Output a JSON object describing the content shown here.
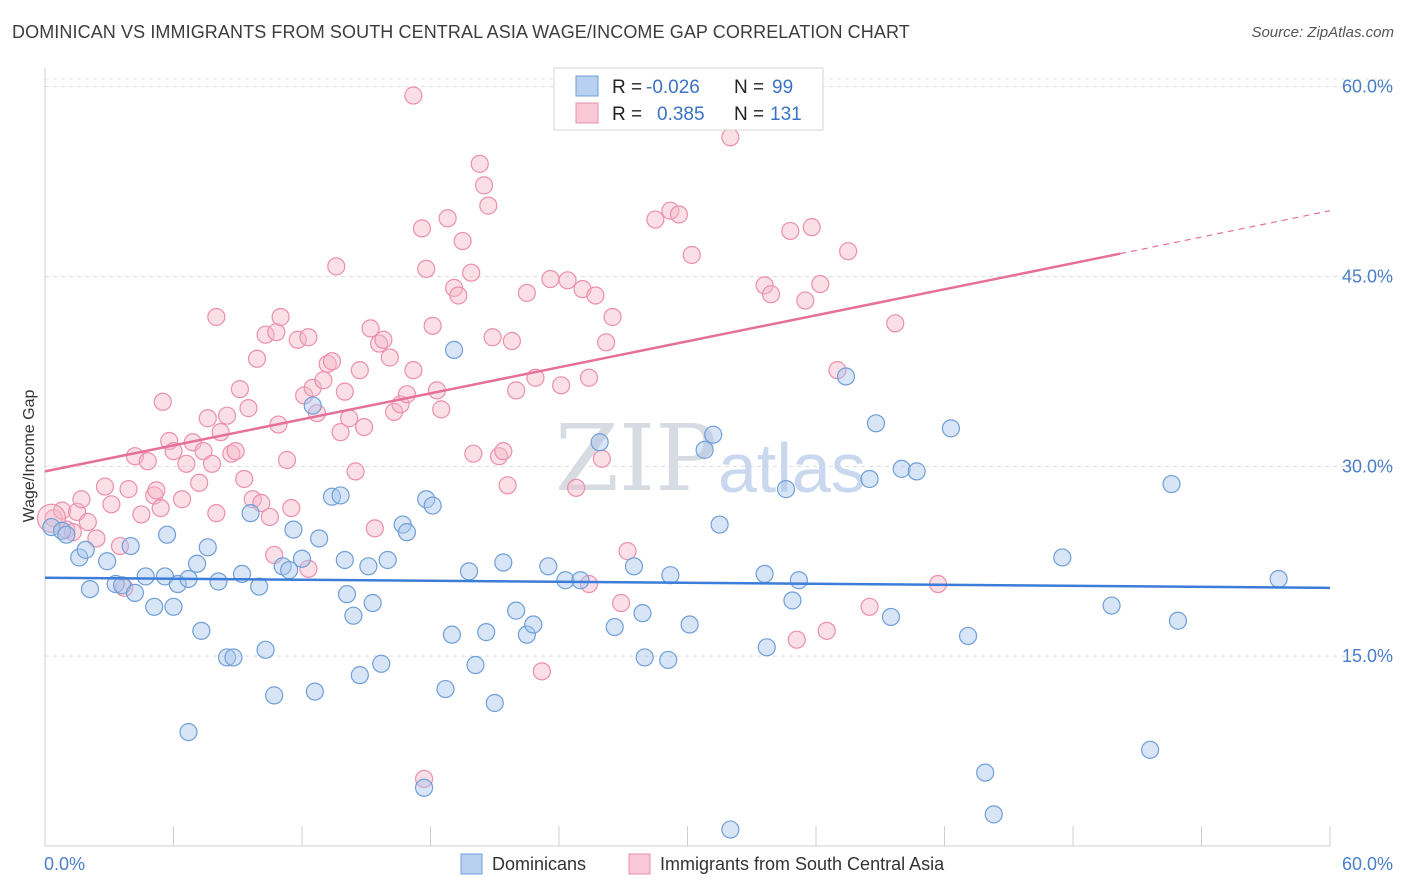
{
  "header": {
    "title": "DOMINICAN VS IMMIGRANTS FROM SOUTH CENTRAL ASIA WAGE/INCOME GAP CORRELATION CHART",
    "source": "Source: ZipAtlas.com"
  },
  "watermark": {
    "zip": "ZIP",
    "atlas": "atlas"
  },
  "legend_box": {
    "rows": [
      {
        "r_label": "R =",
        "r_value": "-0.026",
        "n_label": "N =",
        "n_value": "99"
      },
      {
        "r_label": "R =",
        "r_value": "0.385",
        "n_label": "N =",
        "n_value": "131"
      }
    ]
  },
  "colors": {
    "blue_fill": "#a9c6ec",
    "blue_stroke": "#6f9fd8",
    "blue_line": "#3b7dd8",
    "pink_fill": "#f5b7c9",
    "pink_stroke": "#ec8fac",
    "pink_line": "#e5709a"
  },
  "chart_data": {
    "type": "scatter",
    "title": "DOMINICAN VS IMMIGRANTS FROM SOUTH CENTRAL ASIA WAGE/INCOME GAP CORRELATION CHART",
    "xlabel": "",
    "ylabel": "Wage/Income Gap",
    "xlim": [
      0,
      60
    ],
    "ylim": [
      0,
      61
    ],
    "x_tick_labels": [
      "0.0%",
      "60.0%"
    ],
    "y_ticks": [
      15,
      30,
      45,
      60
    ],
    "y_tick_labels": [
      "15.0%",
      "30.0%",
      "45.0%",
      "60.0%"
    ],
    "grid": true,
    "series": [
      {
        "name": "Dominicans",
        "R": -0.026,
        "N": 99,
        "trend": {
          "x": [
            0,
            60
          ],
          "y": [
            21.2,
            20.4
          ]
        },
        "points": [
          [
            0.3,
            25.2
          ],
          [
            0.8,
            24.9
          ],
          [
            1.0,
            24.6
          ],
          [
            1.6,
            22.8
          ],
          [
            1.9,
            23.4
          ],
          [
            2.1,
            20.3
          ],
          [
            2.9,
            22.5
          ],
          [
            3.3,
            20.7
          ],
          [
            3.6,
            20.6
          ],
          [
            4.0,
            23.7
          ],
          [
            4.2,
            20.0
          ],
          [
            4.7,
            21.3
          ],
          [
            5.1,
            18.9
          ],
          [
            5.6,
            21.3
          ],
          [
            5.7,
            24.6
          ],
          [
            6.0,
            18.9
          ],
          [
            6.2,
            20.7
          ],
          [
            6.7,
            21.1
          ],
          [
            7.1,
            22.3
          ],
          [
            7.3,
            17.0
          ],
          [
            7.6,
            23.6
          ],
          [
            8.1,
            20.9
          ],
          [
            8.5,
            14.9
          ],
          [
            8.8,
            14.9
          ],
          [
            9.2,
            21.5
          ],
          [
            9.6,
            26.3
          ],
          [
            10.0,
            20.5
          ],
          [
            10.3,
            15.5
          ],
          [
            10.7,
            11.9
          ],
          [
            11.1,
            22.1
          ],
          [
            11.4,
            21.8
          ],
          [
            11.6,
            25.0
          ],
          [
            12.0,
            22.7
          ],
          [
            12.5,
            34.8
          ],
          [
            12.6,
            12.2
          ],
          [
            12.8,
            24.3
          ],
          [
            13.4,
            27.6
          ],
          [
            13.8,
            27.7
          ],
          [
            14.1,
            19.9
          ],
          [
            14.4,
            18.2
          ],
          [
            14.7,
            13.5
          ],
          [
            15.1,
            22.1
          ],
          [
            15.3,
            19.2
          ],
          [
            15.7,
            14.4
          ],
          [
            16.0,
            22.6
          ],
          [
            16.7,
            25.4
          ],
          [
            16.9,
            24.8
          ],
          [
            17.7,
            4.6
          ],
          [
            17.8,
            27.4
          ],
          [
            18.1,
            26.9
          ],
          [
            18.7,
            12.4
          ],
          [
            19.0,
            16.7
          ],
          [
            19.1,
            39.2
          ],
          [
            19.8,
            21.7
          ],
          [
            20.1,
            14.3
          ],
          [
            20.6,
            16.9
          ],
          [
            21.0,
            11.3
          ],
          [
            21.4,
            22.4
          ],
          [
            22.0,
            18.6
          ],
          [
            22.5,
            16.7
          ],
          [
            22.8,
            17.5
          ],
          [
            23.5,
            22.1
          ],
          [
            24.3,
            21.0
          ],
          [
            25.0,
            21.0
          ],
          [
            25.9,
            31.9
          ],
          [
            26.6,
            17.3
          ],
          [
            27.5,
            22.1
          ],
          [
            28.0,
            14.9
          ],
          [
            29.1,
            14.7
          ],
          [
            29.2,
            21.4
          ],
          [
            30.1,
            17.5
          ],
          [
            30.8,
            31.3
          ],
          [
            31.2,
            32.5
          ],
          [
            31.5,
            25.4
          ],
          [
            32.0,
            1.3
          ],
          [
            33.6,
            21.5
          ],
          [
            33.7,
            15.7
          ],
          [
            34.6,
            28.2
          ],
          [
            34.9,
            19.4
          ],
          [
            35.2,
            21.0
          ],
          [
            37.4,
            37.1
          ],
          [
            38.5,
            29.0
          ],
          [
            38.8,
            33.4
          ],
          [
            39.5,
            18.1
          ],
          [
            40.0,
            29.8
          ],
          [
            40.7,
            29.6
          ],
          [
            42.3,
            33.0
          ],
          [
            43.1,
            16.6
          ],
          [
            43.9,
            5.8
          ],
          [
            44.3,
            2.5
          ],
          [
            47.5,
            22.8
          ],
          [
            49.8,
            19.0
          ],
          [
            51.6,
            7.6
          ],
          [
            52.6,
            28.6
          ],
          [
            52.9,
            17.8
          ],
          [
            57.6,
            21.1
          ],
          [
            6.7,
            9.0
          ],
          [
            14.0,
            22.6
          ],
          [
            27.9,
            18.4
          ]
        ]
      },
      {
        "name": "Immigrants from South Central Asia",
        "R": 0.385,
        "N": 131,
        "trend": {
          "x": [
            0,
            50.2
          ],
          "y": [
            29.6,
            46.8
          ]
        },
        "trend_dashed": {
          "x": [
            50.2,
            60
          ],
          "y": [
            46.8,
            50.2
          ]
        },
        "points": [
          [
            0.4,
            25.9
          ],
          [
            0.8,
            26.5
          ],
          [
            1.0,
            25.0
          ],
          [
            1.3,
            24.8
          ],
          [
            1.5,
            26.4
          ],
          [
            1.7,
            27.4
          ],
          [
            2.0,
            25.6
          ],
          [
            2.4,
            24.3
          ],
          [
            2.8,
            28.4
          ],
          [
            3.1,
            27.0
          ],
          [
            3.5,
            23.7
          ],
          [
            3.7,
            20.4
          ],
          [
            3.9,
            28.2
          ],
          [
            4.2,
            30.8
          ],
          [
            4.5,
            26.2
          ],
          [
            4.8,
            30.4
          ],
          [
            5.1,
            27.7
          ],
          [
            5.2,
            28.1
          ],
          [
            5.4,
            26.7
          ],
          [
            5.5,
            35.1
          ],
          [
            5.8,
            32.0
          ],
          [
            6.0,
            31.2
          ],
          [
            6.4,
            27.4
          ],
          [
            6.6,
            30.2
          ],
          [
            6.9,
            31.9
          ],
          [
            7.2,
            28.7
          ],
          [
            7.4,
            31.2
          ],
          [
            7.6,
            33.8
          ],
          [
            7.8,
            30.2
          ],
          [
            8.0,
            41.8
          ],
          [
            8.2,
            32.7
          ],
          [
            8.5,
            34.0
          ],
          [
            8.7,
            31.0
          ],
          [
            8.9,
            31.2
          ],
          [
            9.1,
            36.1
          ],
          [
            9.3,
            29.0
          ],
          [
            9.5,
            34.6
          ],
          [
            9.7,
            27.4
          ],
          [
            9.9,
            38.5
          ],
          [
            10.1,
            27.1
          ],
          [
            10.3,
            40.4
          ],
          [
            10.5,
            26.0
          ],
          [
            10.8,
            40.6
          ],
          [
            10.9,
            33.3
          ],
          [
            11.0,
            41.8
          ],
          [
            11.3,
            30.5
          ],
          [
            11.5,
            26.7
          ],
          [
            11.8,
            40.0
          ],
          [
            12.1,
            35.6
          ],
          [
            12.3,
            40.2
          ],
          [
            12.5,
            36.2
          ],
          [
            12.7,
            34.2
          ],
          [
            13.0,
            36.8
          ],
          [
            13.2,
            38.1
          ],
          [
            13.4,
            38.3
          ],
          [
            13.6,
            45.8
          ],
          [
            13.8,
            32.7
          ],
          [
            14.0,
            35.9
          ],
          [
            14.2,
            33.8
          ],
          [
            14.5,
            29.6
          ],
          [
            14.7,
            37.6
          ],
          [
            14.9,
            33.1
          ],
          [
            15.2,
            40.9
          ],
          [
            15.4,
            25.1
          ],
          [
            15.6,
            39.7
          ],
          [
            15.8,
            40.0
          ],
          [
            16.1,
            38.6
          ],
          [
            16.3,
            34.3
          ],
          [
            16.6,
            34.9
          ],
          [
            16.9,
            35.7
          ],
          [
            17.2,
            37.6
          ],
          [
            17.6,
            48.8
          ],
          [
            17.8,
            45.6
          ],
          [
            18.1,
            41.1
          ],
          [
            18.3,
            36.0
          ],
          [
            18.5,
            34.5
          ],
          [
            18.8,
            49.6
          ],
          [
            19.1,
            44.1
          ],
          [
            19.3,
            43.5
          ],
          [
            19.5,
            47.8
          ],
          [
            19.9,
            45.3
          ],
          [
            20.0,
            31.0
          ],
          [
            20.3,
            53.9
          ],
          [
            20.5,
            52.2
          ],
          [
            20.7,
            50.6
          ],
          [
            20.9,
            40.2
          ],
          [
            21.2,
            30.8
          ],
          [
            21.4,
            31.2
          ],
          [
            21.6,
            28.5
          ],
          [
            21.8,
            39.9
          ],
          [
            22.0,
            36.0
          ],
          [
            22.5,
            43.7
          ],
          [
            22.9,
            37.0
          ],
          [
            23.2,
            13.8
          ],
          [
            23.6,
            44.8
          ],
          [
            24.1,
            36.4
          ],
          [
            24.4,
            44.7
          ],
          [
            24.8,
            28.3
          ],
          [
            25.1,
            44.0
          ],
          [
            25.4,
            37.0
          ],
          [
            25.7,
            43.5
          ],
          [
            26.0,
            30.6
          ],
          [
            26.2,
            39.8
          ],
          [
            26.5,
            41.8
          ],
          [
            26.9,
            19.2
          ],
          [
            27.2,
            23.3
          ],
          [
            28.5,
            49.5
          ],
          [
            29.2,
            50.2
          ],
          [
            29.6,
            49.9
          ],
          [
            30.2,
            46.7
          ],
          [
            32.0,
            56.0
          ],
          [
            33.6,
            44.3
          ],
          [
            33.9,
            43.6
          ],
          [
            34.8,
            48.6
          ],
          [
            35.1,
            16.3
          ],
          [
            35.5,
            43.1
          ],
          [
            35.8,
            48.9
          ],
          [
            36.2,
            44.4
          ],
          [
            36.5,
            17.0
          ],
          [
            37.0,
            37.6
          ],
          [
            37.5,
            47.0
          ],
          [
            38.5,
            18.9
          ],
          [
            39.7,
            41.3
          ],
          [
            41.7,
            20.7
          ],
          [
            17.2,
            59.3
          ],
          [
            17.7,
            5.3
          ],
          [
            8.0,
            26.3
          ],
          [
            10.7,
            23.0
          ],
          [
            12.3,
            21.9
          ],
          [
            25.4,
            20.7
          ]
        ]
      }
    ]
  }
}
